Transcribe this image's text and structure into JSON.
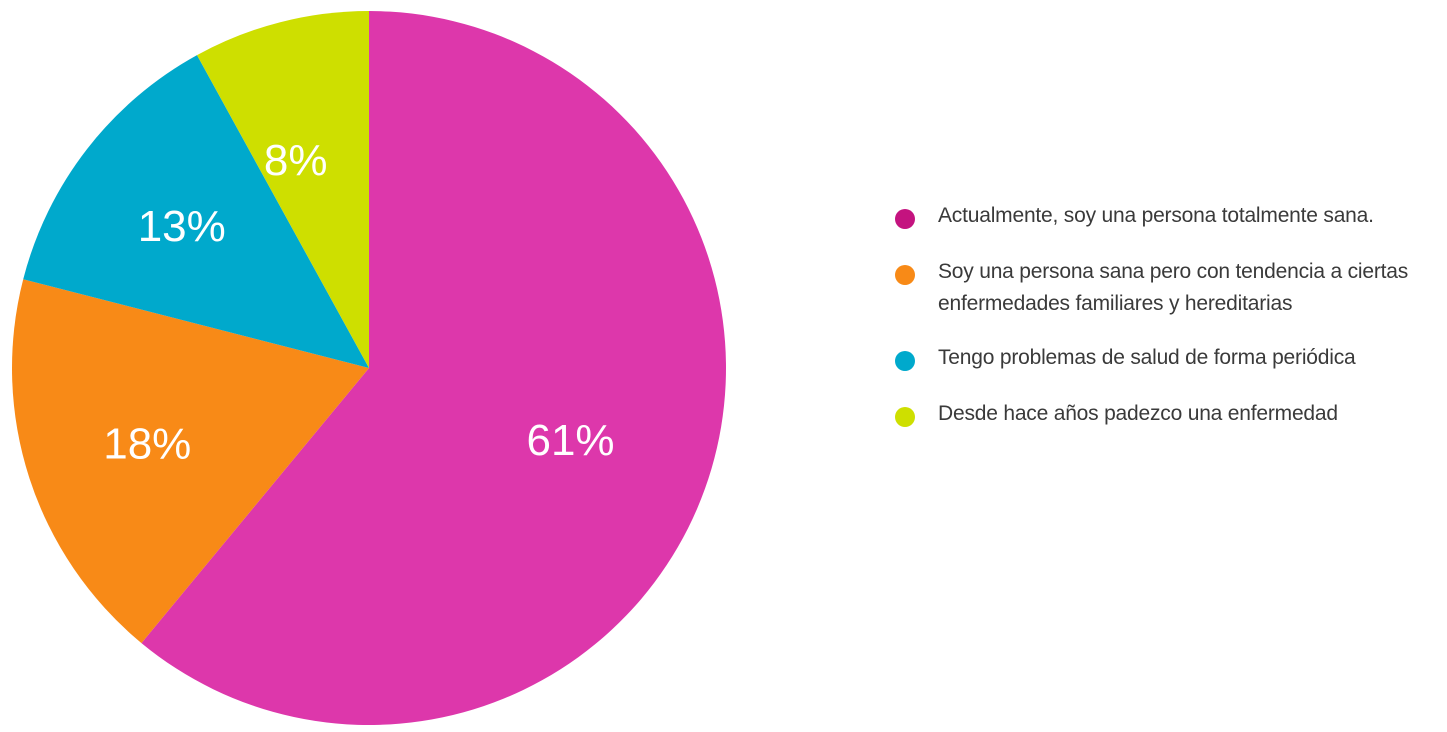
{
  "chart_data": {
    "type": "pie",
    "title": "",
    "slices": [
      {
        "label": "Actualmente, soy una persona totalmente sana.",
        "value": 61,
        "display": "61%",
        "color": "#DD37AB"
      },
      {
        "label": "Soy una persona sana pero con tendencia a ciertas\nenfermedades familiares y hereditarias",
        "value": 18,
        "display": "18%",
        "color": "#F88A17"
      },
      {
        "label": "Tengo problemas de salud de forma periódica",
        "value": 13,
        "display": "13%",
        "color": "#00A9CC"
      },
      {
        "label": "Desde hace años padezco una enfermedad",
        "value": 8,
        "display": "8%",
        "color": "#CEDF00"
      }
    ],
    "legend_position": "right",
    "legend_dot_colors": [
      "#C4137F",
      "#F88A17",
      "#00A9CC",
      "#CEDF00"
    ]
  }
}
